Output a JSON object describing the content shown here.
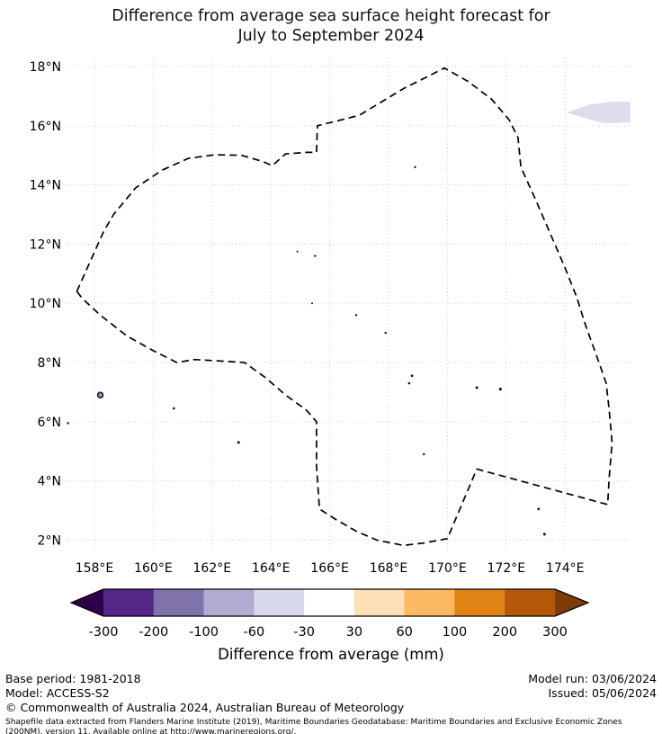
{
  "title": {
    "line1": "Difference from average sea surface height forecast for",
    "line2": "July to September 2024"
  },
  "footer": {
    "base_period": "Base period: 1981-2018",
    "model": "Model: ACCESS-S2",
    "model_run": "Model run: 03/06/2024",
    "issued": "Issued: 05/06/2024",
    "copyright": "© Commonwealth of Australia 2024, Australian Bureau of Meteorology",
    "attribution": "Shapefile data extracted from Flanders Marine Institute (2019), Maritime Boundaries Geodatabase: Maritime Boundaries and Exclusive Economic Zones (200NM), version 11. Available online at http://www.marineregions.org/."
  },
  "chart_data": {
    "type": "map",
    "title": "Difference from average sea surface height forecast for July to September 2024",
    "grid": true,
    "x_axis": {
      "tick_values": [
        158,
        160,
        162,
        164,
        166,
        168,
        170,
        172,
        174
      ],
      "tick_labels": [
        "158°E",
        "160°E",
        "162°E",
        "164°E",
        "166°E",
        "168°E",
        "170°E",
        "172°E",
        "174°E"
      ],
      "range": [
        157.05,
        176.2
      ]
    },
    "y_axis": {
      "tick_values": [
        2,
        4,
        6,
        8,
        10,
        12,
        14,
        16,
        18
      ],
      "tick_labels": [
        "2°N",
        "4°N",
        "6°N",
        "8°N",
        "10°N",
        "12°N",
        "14°N",
        "16°N",
        "18°N"
      ],
      "range": [
        1.55,
        18.3
      ]
    },
    "colorbar": {
      "label": "Difference from average (mm)",
      "tick_labels": [
        "-300",
        "-200",
        "-100",
        "-60",
        "-30",
        "30",
        "60",
        "100",
        "200",
        "300"
      ],
      "boundaries_mm": [
        -300,
        -200,
        -100,
        -60,
        -30,
        30,
        60,
        100,
        200,
        300
      ],
      "segment_colors": [
        "#542788",
        "#8073ac",
        "#b2abd2",
        "#d8daeb",
        "#ffffff",
        "#fee0b6",
        "#fdb863",
        "#e08214",
        "#b35806"
      ],
      "under_color": "#2d004b",
      "over_color": "#7f3b08"
    },
    "eez_boundary": {
      "style": "dashed",
      "color": "#000000",
      "points": [
        [
          157.4,
          10.4
        ],
        [
          157.85,
          11.4
        ],
        [
          158.3,
          12.4
        ],
        [
          158.65,
          13.0
        ],
        [
          159.4,
          13.9
        ],
        [
          160.3,
          14.5
        ],
        [
          161.2,
          14.9
        ],
        [
          162.1,
          15.02
        ],
        [
          163.0,
          15.0
        ],
        [
          163.7,
          14.8
        ],
        [
          164.05,
          14.65
        ],
        [
          164.5,
          15.05
        ],
        [
          165.2,
          15.1
        ],
        [
          165.55,
          15.1
        ],
        [
          165.58,
          16.0
        ],
        [
          167.0,
          16.35
        ],
        [
          168.5,
          17.25
        ],
        [
          169.9,
          17.95
        ],
        [
          170.7,
          17.5
        ],
        [
          171.5,
          16.9
        ],
        [
          172.1,
          16.2
        ],
        [
          172.4,
          15.6
        ],
        [
          172.5,
          14.6
        ],
        [
          173.0,
          13.5
        ],
        [
          173.5,
          12.35
        ],
        [
          174.0,
          11.2
        ],
        [
          174.4,
          10.2
        ],
        [
          174.7,
          9.25
        ],
        [
          175.1,
          8.15
        ],
        [
          175.4,
          7.3
        ],
        [
          175.5,
          6.4
        ],
        [
          175.6,
          5.3
        ],
        [
          175.5,
          4.1
        ],
        [
          175.45,
          3.2
        ],
        [
          171.0,
          4.4
        ],
        [
          170.0,
          2.05
        ],
        [
          169.2,
          1.9
        ],
        [
          168.5,
          1.82
        ],
        [
          167.6,
          2.0
        ],
        [
          166.9,
          2.3
        ],
        [
          166.2,
          2.7
        ],
        [
          165.65,
          3.05
        ],
        [
          165.55,
          4.5
        ],
        [
          165.55,
          6.0
        ],
        [
          165.2,
          6.4
        ],
        [
          164.5,
          6.9
        ],
        [
          163.8,
          7.5
        ],
        [
          163.1,
          8.0
        ],
        [
          162.3,
          8.05
        ],
        [
          161.4,
          8.1
        ],
        [
          160.8,
          8.0
        ],
        [
          160.0,
          8.4
        ],
        [
          159.1,
          8.9
        ],
        [
          158.2,
          9.6
        ],
        [
          157.6,
          10.15
        ]
      ]
    },
    "islands": [
      {
        "lon": 157.1,
        "lat": 5.95,
        "r": 1.2
      },
      {
        "lon": 158.2,
        "lat": 6.9,
        "r": 3.0,
        "ring": true
      },
      {
        "lon": 160.7,
        "lat": 6.45,
        "r": 1.3
      },
      {
        "lon": 162.9,
        "lat": 5.3,
        "r": 1.5
      },
      {
        "lon": 164.9,
        "lat": 11.75,
        "r": 1.0
      },
      {
        "lon": 165.4,
        "lat": 10.0,
        "r": 1.0
      },
      {
        "lon": 165.5,
        "lat": 11.6,
        "r": 1.2
      },
      {
        "lon": 166.9,
        "lat": 9.6,
        "r": 1.2
      },
      {
        "lon": 167.9,
        "lat": 9.0,
        "r": 1.2
      },
      {
        "lon": 168.9,
        "lat": 14.6,
        "r": 1.2
      },
      {
        "lon": 168.8,
        "lat": 7.55,
        "r": 1.4
      },
      {
        "lon": 168.7,
        "lat": 7.3,
        "r": 1.3
      },
      {
        "lon": 169.2,
        "lat": 4.9,
        "r": 1.2
      },
      {
        "lon": 171.0,
        "lat": 7.15,
        "r": 1.5
      },
      {
        "lon": 171.8,
        "lat": 7.1,
        "r": 1.6
      },
      {
        "lon": 173.1,
        "lat": 3.05,
        "r": 1.4
      },
      {
        "lon": 173.3,
        "lat": 2.2,
        "r": 1.5
      }
    ],
    "shaded_region": {
      "color": "#dcdcec",
      "points": [
        [
          174.05,
          16.45
        ],
        [
          174.85,
          16.72
        ],
        [
          175.65,
          16.82
        ],
        [
          176.22,
          16.8
        ],
        [
          176.22,
          16.12
        ],
        [
          175.35,
          16.08
        ],
        [
          174.6,
          16.28
        ]
      ]
    }
  }
}
